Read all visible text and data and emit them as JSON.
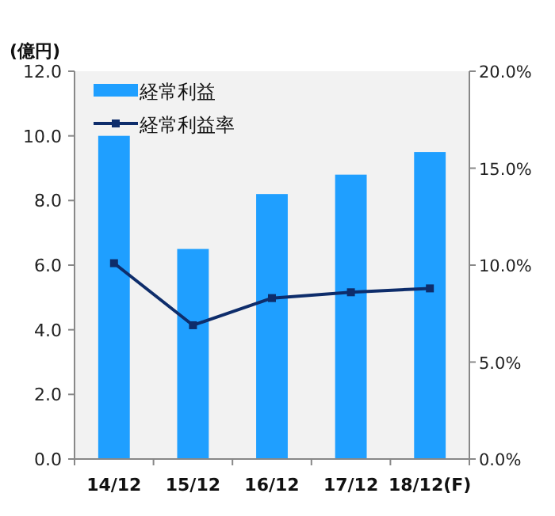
{
  "chart_data": {
    "type": "bar",
    "ylabel": "(億円)",
    "categories": [
      "14/12",
      "15/12",
      "16/12",
      "17/12",
      "18/12(F)"
    ],
    "series": [
      {
        "name": "経常利益",
        "color": "#1f9fff",
        "values": [
          10.0,
          6.5,
          8.2,
          8.8,
          9.5
        ]
      },
      {
        "name": "経常利益率",
        "type": "line",
        "axis": "y2",
        "color": "#0e2d6b",
        "values": [
          10.1,
          6.9,
          8.3,
          8.6,
          8.8
        ]
      }
    ],
    "ylim": [
      0,
      12
    ],
    "yticks": [
      {
        "value": 0,
        "label": "0.0"
      },
      {
        "value": 2,
        "label": "2.0"
      },
      {
        "value": 4,
        "label": "4.0"
      },
      {
        "value": 6,
        "label": "6.0"
      },
      {
        "value": 8,
        "label": "8.0"
      },
      {
        "value": 10,
        "label": "10.0"
      },
      {
        "value": 12,
        "label": "12.0"
      }
    ],
    "y2lim": [
      0,
      20
    ],
    "y2ticks": [
      {
        "value": 0,
        "label": "0.0%"
      },
      {
        "value": 5,
        "label": "5.0%"
      },
      {
        "value": 10,
        "label": "10.0%"
      },
      {
        "value": 15,
        "label": "15.0%"
      },
      {
        "value": 20,
        "label": "20.0%"
      }
    ],
    "legend": "top left",
    "marker": "square",
    "line_style": "solid",
    "grid": false
  }
}
